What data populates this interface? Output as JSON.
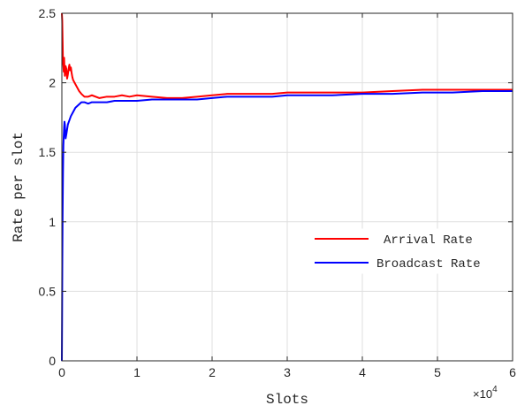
{
  "chart_data": {
    "type": "line",
    "title": "",
    "xlabel": "Slots",
    "ylabel": "Rate per slot",
    "x_multiplier_label": "×10",
    "x_multiplier_exponent": "4",
    "xlim": [
      0,
      60000
    ],
    "ylim": [
      0,
      2.5
    ],
    "x_ticks": [
      0,
      10000,
      20000,
      30000,
      40000,
      50000,
      60000
    ],
    "x_tick_labels": [
      "0",
      "1",
      "2",
      "3",
      "4",
      "5",
      "6"
    ],
    "y_ticks": [
      0,
      0.5,
      1,
      1.5,
      2,
      2.5
    ],
    "y_tick_labels": [
      "0",
      "0.5",
      "1",
      "1.5",
      "2",
      "2.5"
    ],
    "grid": true,
    "legend_position": "center-right",
    "series": [
      {
        "name": "Arrival Rate",
        "color": "#ff0000",
        "x": [
          0,
          50,
          100,
          150,
          200,
          250,
          300,
          350,
          400,
          500,
          600,
          700,
          800,
          900,
          1000,
          1100,
          1200,
          1300,
          1400,
          1500,
          1700,
          2000,
          2300,
          2600,
          3000,
          3500,
          4000,
          5000,
          6000,
          7000,
          8000,
          9000,
          10000,
          12000,
          14000,
          16000,
          18000,
          20000,
          22000,
          25000,
          28000,
          30000,
          33000,
          36000,
          40000,
          44000,
          48000,
          52000,
          56000,
          60000
        ],
        "y": [
          2.5,
          2.45,
          2.3,
          2.15,
          2.12,
          2.08,
          2.18,
          2.1,
          2.05,
          2.12,
          2.1,
          2.03,
          2.06,
          2.1,
          2.13,
          2.09,
          2.11,
          2.07,
          2.04,
          2.02,
          2.0,
          1.97,
          1.94,
          1.92,
          1.9,
          1.9,
          1.91,
          1.89,
          1.9,
          1.9,
          1.91,
          1.9,
          1.91,
          1.9,
          1.89,
          1.89,
          1.9,
          1.91,
          1.92,
          1.92,
          1.92,
          1.93,
          1.93,
          1.93,
          1.93,
          1.94,
          1.95,
          1.95,
          1.95,
          1.95
        ]
      },
      {
        "name": "Broadcast Rate",
        "color": "#0000ff",
        "x": [
          0,
          30,
          60,
          100,
          150,
          200,
          250,
          300,
          350,
          400,
          500,
          600,
          800,
          1000,
          1200,
          1500,
          1800,
          2200,
          2600,
          3000,
          3500,
          4000,
          5000,
          6000,
          7000,
          8000,
          9000,
          10000,
          12000,
          14000,
          16000,
          18000,
          20000,
          22000,
          25000,
          28000,
          30000,
          33000,
          36000,
          40000,
          44000,
          48000,
          52000,
          56000,
          60000
        ],
        "y": [
          0,
          0.3,
          0.7,
          1.05,
          1.35,
          1.55,
          1.62,
          1.68,
          1.72,
          1.7,
          1.6,
          1.63,
          1.7,
          1.73,
          1.76,
          1.79,
          1.82,
          1.84,
          1.86,
          1.86,
          1.85,
          1.86,
          1.86,
          1.86,
          1.87,
          1.87,
          1.87,
          1.87,
          1.88,
          1.88,
          1.88,
          1.88,
          1.89,
          1.9,
          1.9,
          1.9,
          1.91,
          1.91,
          1.91,
          1.92,
          1.92,
          1.93,
          1.93,
          1.94,
          1.94
        ]
      }
    ]
  }
}
